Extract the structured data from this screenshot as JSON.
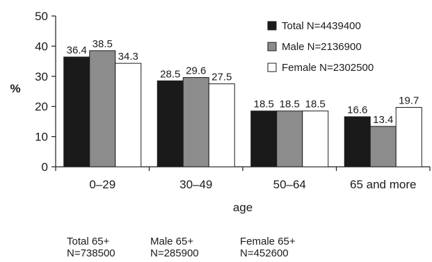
{
  "chart_data": {
    "type": "bar",
    "ylabel": "%",
    "xlabel": "age",
    "ylim": [
      0,
      50
    ],
    "yticks": [
      0,
      10,
      20,
      30,
      40,
      50
    ],
    "grid": false,
    "legend_position": "top-right",
    "categories": [
      "0–29",
      "30–49",
      "50–64",
      "65 and more"
    ],
    "series": [
      {
        "name": "Total",
        "legend_label": "Total  N=4439400",
        "color": "#1a1a1a",
        "values": [
          36.4,
          28.5,
          18.5,
          16.6
        ],
        "labels": [
          "36.4",
          "28.5",
          "18.5",
          "16.6"
        ]
      },
      {
        "name": "Male",
        "legend_label": "Male  N=2136900",
        "color": "#8c8c8c",
        "values": [
          38.5,
          29.6,
          18.5,
          13.4
        ],
        "labels": [
          "38.5",
          "29.6",
          "18.5",
          "13.4"
        ]
      },
      {
        "name": "Female",
        "legend_label": "Female  N=2302500",
        "color": "#ffffff",
        "values": [
          34.3,
          27.5,
          18.5,
          19.7
        ],
        "labels": [
          "34.3",
          "27.5",
          "18.5",
          "19.7"
        ]
      }
    ]
  },
  "footnotes": [
    {
      "label": "Total 65+",
      "n": "N=738500"
    },
    {
      "label": "Male 65+",
      "n": "N=285900"
    },
    {
      "label": "Female 65+",
      "n": "N=452600"
    }
  ]
}
